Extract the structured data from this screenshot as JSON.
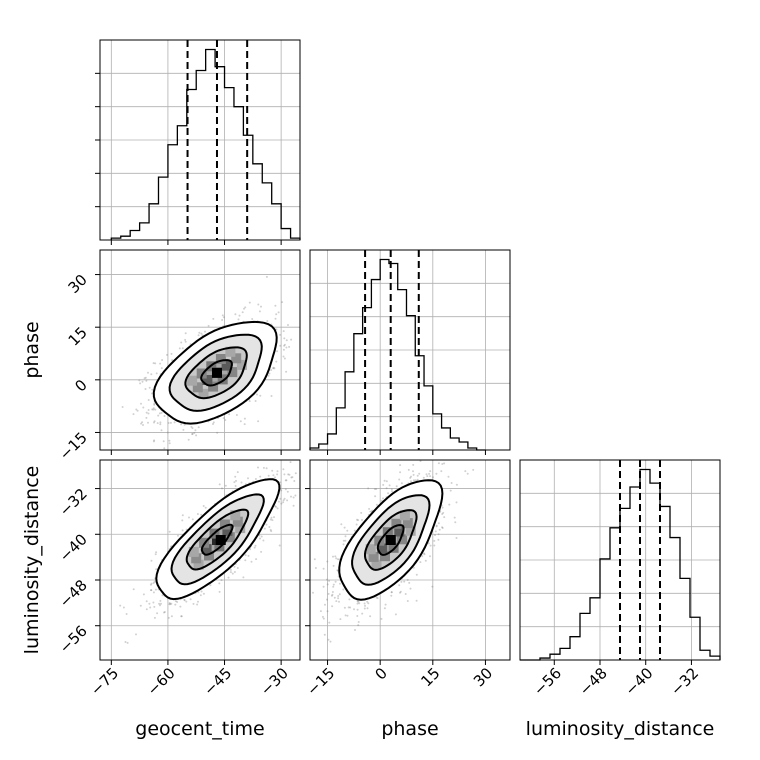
{
  "chart_data": {
    "type": "corner",
    "parameters": [
      "geocent_time",
      "phase",
      "luminosity_distance"
    ],
    "ranges": {
      "geocent_time": [
        -78,
        -25
      ],
      "phase": [
        -20,
        37
      ],
      "luminosity_distance": [
        -62,
        -27
      ]
    },
    "ticks": {
      "geocent_time": [
        -75,
        -60,
        -45,
        -30
      ],
      "phase": [
        -15,
        0,
        15,
        30
      ],
      "luminosity_distance": [
        -56,
        -48,
        -40,
        -32
      ]
    },
    "tick_labels": {
      "geocent_time": [
        "−75",
        "−60",
        "−45",
        "−30"
      ],
      "phase": [
        "−15",
        "0",
        "15",
        "30"
      ],
      "luminosity_distance": [
        "−56",
        "−48",
        "−40",
        "−32"
      ]
    },
    "quantiles": {
      "geocent_time": [
        -54.8,
        -47,
        -39
      ],
      "phase": [
        -4.3,
        3,
        11
      ],
      "luminosity_distance": [
        -44.5,
        -41,
        -37.5
      ]
    },
    "histograms": {
      "geocent_time": {
        "bin_starts": [
          -75,
          -72.5,
          -70,
          -67.5,
          -65,
          -62.5,
          -60,
          -57.5,
          -55,
          -52.5,
          -50,
          -47.5,
          -45,
          -42.5,
          -40,
          -37.5,
          -35,
          -32.5,
          -30,
          -27.5
        ],
        "bin_width": 2.5,
        "counts": [
          1,
          2,
          5,
          9,
          19,
          33,
          50,
          60,
          79,
          89,
          100,
          91,
          80,
          70,
          55,
          40,
          30,
          19,
          6,
          1
        ]
      },
      "phase": {
        "bin_starts": [
          -20,
          -17.5,
          -15,
          -12.5,
          -10,
          -7.5,
          -5,
          -2.5,
          0,
          2.5,
          5,
          7.5,
          10,
          12.5,
          15,
          17.5,
          20,
          22.5,
          25,
          27.5
        ],
        "bin_width": 2.5,
        "counts": [
          1,
          3,
          8,
          21,
          39,
          58,
          71,
          85,
          95,
          93,
          80,
          67,
          47,
          32,
          18,
          11,
          6,
          4,
          1,
          0
        ]
      },
      "luminosity_distance": {
        "bin_starts": [
          -62,
          -60.25,
          -58.5,
          -56.75,
          -55,
          -53.25,
          -51.5,
          -49.75,
          -48,
          -46.25,
          -44.5,
          -42.75,
          -41,
          -39.25,
          -37.5,
          -35.75,
          -34,
          -32.25,
          -30.5,
          -28.75
        ],
        "bin_width": 1.75,
        "counts": [
          0,
          0,
          1,
          3,
          6,
          12,
          24,
          32,
          52,
          68,
          78,
          89,
          98,
          91,
          79,
          63,
          42,
          22,
          5,
          2
        ]
      }
    },
    "pairs": [
      {
        "x": "geocent_time",
        "y": "phase",
        "mean": [
          -47,
          2
        ],
        "sd": [
          8,
          7.2
        ],
        "corr": 0.5,
        "peak": [
          -47,
          2
        ]
      },
      {
        "x": "geocent_time",
        "y": "luminosity_distance",
        "mean": [
          -47,
          -41
        ],
        "sd": [
          8,
          5.2
        ],
        "corr": 0.78,
        "peak": [
          -46,
          -41
        ]
      },
      {
        "x": "phase",
        "y": "luminosity_distance",
        "mean": [
          3,
          -41
        ],
        "sd": [
          7.2,
          5.2
        ],
        "corr": 0.64,
        "peak": [
          3,
          -41
        ]
      }
    ],
    "contour_levels_sigma": [
      0.5,
      1,
      1.5,
      2
    ],
    "grid": true,
    "labels": {
      "x": [
        "geocent_time",
        "phase",
        "luminosity_distance"
      ],
      "y": [
        "phase",
        "luminosity_distance"
      ]
    }
  }
}
